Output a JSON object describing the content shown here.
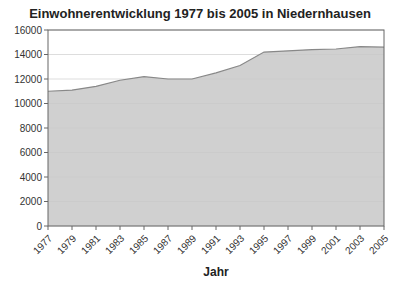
{
  "chart_data": {
    "type": "area",
    "title": "Einwohnerentwicklung 1977 bis 2005 in Niedernhausen",
    "x_label": "Jahr",
    "x": [
      1977,
      1979,
      1981,
      1983,
      1985,
      1987,
      1989,
      1991,
      1993,
      1995,
      1997,
      1999,
      2001,
      2003,
      2005
    ],
    "values": [
      11000,
      11100,
      11400,
      11900,
      12200,
      12000,
      12000,
      12500,
      13100,
      14200,
      14300,
      14400,
      14450,
      14650,
      14600
    ],
    "color": "#c8c8c8",
    "xlim": [
      1977,
      2005
    ],
    "xticks": [
      1977,
      1979,
      1981,
      1983,
      1985,
      1987,
      1989,
      1991,
      1993,
      1995,
      1997,
      1999,
      2001,
      2003,
      2005
    ],
    "ylim": [
      0,
      16000
    ],
    "yticks": [
      0,
      2000,
      4000,
      6000,
      8000,
      10000,
      12000,
      14000,
      16000
    ],
    "grid": true
  }
}
